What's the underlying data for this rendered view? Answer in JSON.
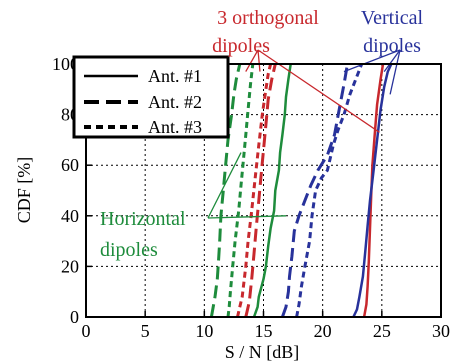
{
  "chart_data": {
    "type": "line",
    "xlabel": "S / N [dB]",
    "ylabel": "CDF [%]",
    "xlim": [
      0,
      30
    ],
    "ylim": [
      0,
      100
    ],
    "xticks": [
      "0",
      "5",
      "10",
      "15",
      "20",
      "25",
      "30"
    ],
    "yticks": [
      "0",
      "20",
      "40",
      "60",
      "80",
      "100"
    ],
    "grid": true,
    "legend_position": "top-left",
    "legend": [
      {
        "label": "Ant. #1",
        "style": "solid"
      },
      {
        "label": "Ant. #2",
        "style": "long-dash"
      },
      {
        "label": "Ant. #3",
        "style": "short-dash"
      }
    ],
    "annotations": {
      "orthogonal": "3 orthogonal\ndipoles",
      "vertical": "Vertical\ndipoles",
      "horizontal": "Horizontal\ndipoles"
    },
    "groups": [
      {
        "group": "horizontal",
        "color": "#1e8c3c",
        "series": [
          {
            "antenna": "Ant. #1",
            "style": "solid",
            "x": [
              14.2,
              14.5,
              14.6,
              15.0,
              15.2,
              15.4,
              15.6,
              15.9,
              16.0,
              16.3,
              16.4,
              16.6,
              16.8,
              16.9,
              17.1,
              17.3
            ],
            "y": [
              0,
              4,
              8,
              15,
              20,
              28,
              35,
              42,
              50,
              58,
              65,
              72,
              80,
              87,
              94,
              100
            ]
          },
          {
            "antenna": "Ant. #2",
            "style": "long-dash",
            "x": [
              10.6,
              10.9,
              11.1,
              11.2,
              11.3,
              11.4,
              11.6,
              11.8,
              12.0,
              12.3,
              12.5,
              12.7,
              13.0
            ],
            "y": [
              0,
              8,
              15,
              22,
              30,
              40,
              50,
              60,
              70,
              80,
              88,
              94,
              100
            ]
          },
          {
            "antenna": "Ant. #3",
            "style": "short-dash",
            "x": [
              12.0,
              12.1,
              12.2,
              12.4,
              12.6,
              12.9,
              13.1,
              13.3,
              13.5,
              13.7,
              13.9,
              14.1
            ],
            "y": [
              0,
              4,
              10,
              20,
              30,
              42,
              52,
              62,
              72,
              82,
              92,
              100
            ]
          }
        ]
      },
      {
        "group": "orthogonal",
        "color": "#c8282d",
        "series": [
          {
            "antenna": "Ant. #1",
            "style": "solid",
            "x": [
              23.5,
              23.7,
              23.8,
              23.9,
              24.0,
              24.1,
              24.2,
              24.4,
              24.6,
              24.9,
              25.1
            ],
            "y": [
              0,
              5,
              12,
              22,
              35,
              48,
              60,
              72,
              84,
              94,
              100
            ]
          },
          {
            "antenna": "Ant. #2",
            "style": "long-dash",
            "x": [
              13.5,
              13.8,
              14.0,
              14.2,
              14.4,
              14.6,
              14.8,
              15.0,
              15.2,
              15.4,
              15.7,
              16.0
            ],
            "y": [
              0,
              6,
              15,
              25,
              36,
              46,
              56,
              66,
              76,
              86,
              94,
              100
            ]
          },
          {
            "antenna": "Ant. #3",
            "style": "short-dash",
            "x": [
              12.8,
              13.0,
              13.2,
              13.3,
              13.5,
              13.7,
              14.0,
              14.3,
              14.6,
              14.9,
              15.2,
              15.4,
              15.6
            ],
            "y": [
              0,
              4,
              8,
              12,
              20,
              30,
              42,
              55,
              68,
              80,
              90,
              96,
              100
            ]
          }
        ]
      },
      {
        "group": "vertical",
        "color": "#28329b",
        "series": [
          {
            "antenna": "Ant. #1",
            "style": "solid",
            "x": [
              22.6,
              22.9,
              23.1,
              23.4,
              23.6,
              23.8,
              24.0,
              24.3,
              24.6,
              24.9,
              25.2,
              25.5,
              25.8
            ],
            "y": [
              0,
              3,
              8,
              16,
              26,
              36,
              46,
              58,
              70,
              82,
              91,
              97,
              100
            ]
          },
          {
            "antenna": "Ant. #2",
            "style": "long-dash",
            "x": [
              16.6,
              16.9,
              17.1,
              17.2,
              17.4,
              17.6,
              18.0,
              18.5,
              19.0,
              19.6,
              20.4,
              21.0,
              21.4,
              21.8,
              22.1
            ],
            "y": [
              0,
              4,
              10,
              16,
              24,
              34,
              40,
              46,
              52,
              58,
              64,
              72,
              82,
              92,
              100
            ]
          },
          {
            "antenna": "Ant. #3",
            "style": "short-dash",
            "x": [
              17.8,
              18.0,
              18.2,
              18.5,
              18.9,
              19.1,
              19.4,
              19.9,
              20.4,
              20.6,
              20.9,
              21.3,
              21.8,
              22.3,
              22.8,
              23.3
            ],
            "y": [
              0,
              5,
              12,
              20,
              30,
              40,
              50,
              55,
              58,
              62,
              68,
              74,
              80,
              88,
              94,
              100
            ]
          }
        ]
      }
    ],
    "pointers": {
      "orthogonal": [
        [
          13.5,
          97
        ],
        [
          14.7,
          97
        ],
        [
          24.8,
          73
        ]
      ],
      "vertical": [
        [
          21.8,
          97
        ],
        [
          25.2,
          97
        ],
        [
          25.7,
          88
        ]
      ],
      "horizontal": [
        [
          13.1,
          65
        ],
        [
          16.9,
          40
        ]
      ]
    }
  }
}
